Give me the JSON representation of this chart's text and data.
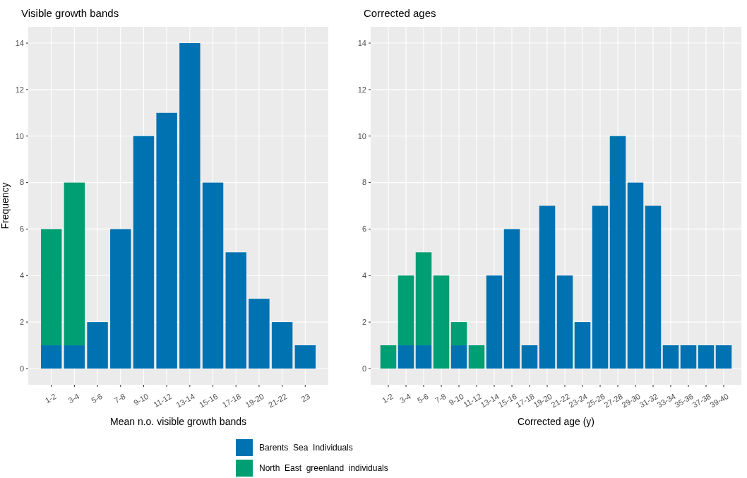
{
  "chart_data": [
    {
      "type": "bar",
      "title": "Visible growth bands",
      "xlabel": "Mean n.o. visible growth bands",
      "ylabel": "Frequency",
      "stacked": true,
      "legend": "bottom",
      "grid": true,
      "categories": [
        "1-2",
        "3-4",
        "5-6",
        "7-8",
        "9-10",
        "11-12",
        "13-14",
        "15-16",
        "17-18",
        "19-20",
        "21-22",
        "23"
      ],
      "series": [
        {
          "name": "Barents  Sea  Individuals",
          "color": "#0072b2",
          "values": [
            1,
            1,
            2,
            6,
            10,
            11,
            14,
            8,
            5,
            3,
            2,
            1
          ]
        },
        {
          "name": "North  East  greenland  individuals",
          "color": "#009e73",
          "values": [
            5,
            7,
            0,
            0,
            0,
            0,
            0,
            0,
            0,
            0,
            0,
            0
          ]
        }
      ],
      "ylim": [
        -0.7,
        14.7
      ],
      "yticks": [
        0,
        2,
        4,
        6,
        8,
        10,
        12,
        14
      ]
    },
    {
      "type": "bar",
      "title": "Corrected ages",
      "xlabel": "Corrected age (y)",
      "stacked": true,
      "grid": true,
      "categories": [
        "1-2",
        "3-4",
        "5-6",
        "7-8",
        "9-10",
        "11-12",
        "13-14",
        "15-16",
        "17-18",
        "19-20",
        "21-22",
        "23-24",
        "25-26",
        "27-28",
        "29-30",
        "31-32",
        "33-34",
        "35-36",
        "37-38",
        "39-40"
      ],
      "series": [
        {
          "color": "#0072b2",
          "values": [
            0,
            1,
            1,
            0,
            1,
            0,
            4,
            6,
            1,
            7,
            4,
            2,
            7,
            10,
            8,
            7,
            1,
            1,
            1,
            1
          ]
        },
        {
          "color": "#009e73",
          "values": [
            1,
            3,
            4,
            4,
            1,
            1,
            0,
            0,
            0,
            0,
            0,
            0,
            0,
            0,
            0,
            0,
            0,
            0,
            0,
            0
          ]
        }
      ],
      "ylim": [
        -0.7,
        14.7
      ],
      "yticks": [
        0,
        2,
        4,
        6,
        8,
        10,
        12,
        14
      ]
    }
  ]
}
